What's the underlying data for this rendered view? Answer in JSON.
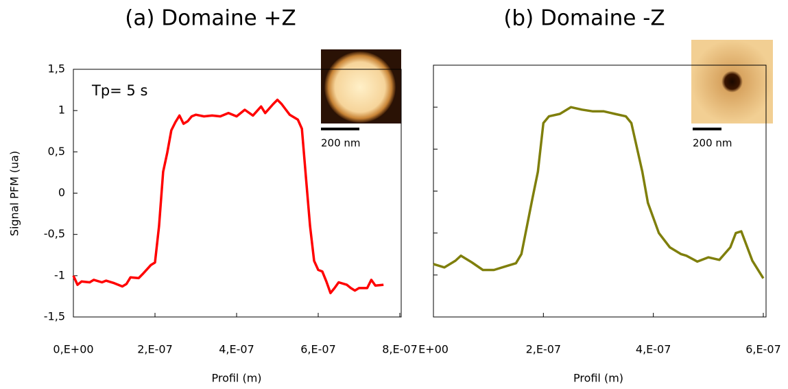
{
  "chart_data": [
    {
      "type": "line",
      "title": "(a) Domaine +Z",
      "x_label": "Profil (m)",
      "y_label": "Signal PFM (ua)",
      "annotation": "Tp= 5 s",
      "inset_scale": "200 nm",
      "color": "#ff0000",
      "xlim": [
        0,
        8e-07
      ],
      "ylim": [
        -1.5,
        1.5
      ],
      "xticks": [
        {
          "value": 0,
          "label": "0,E+00"
        },
        {
          "value": 2e-07,
          "label": "2,E-07"
        },
        {
          "value": 4e-07,
          "label": "4,E-07"
        },
        {
          "value": 6e-07,
          "label": "6,E-07"
        },
        {
          "value": 8e-07,
          "label": "8,E-07"
        }
      ],
      "yticks": [
        {
          "value": 1.5,
          "label": "1,5"
        },
        1,
        {
          "value": 0.5,
          "label": "0,5"
        },
        0,
        {
          "value": -0.5,
          "label": "-0,5"
        },
        -1,
        {
          "value": -1.5,
          "label": "-1,5"
        }
      ],
      "show_ytick_labels": true,
      "x": [
        0,
        1e-08,
        2e-08,
        4e-08,
        5e-08,
        7e-08,
        8e-08,
        1e-07,
        1.2e-07,
        1.3e-07,
        1.4e-07,
        1.6e-07,
        1.7e-07,
        1.9e-07,
        2e-07,
        2.1e-07,
        2.2e-07,
        2.3e-07,
        2.4e-07,
        2.5e-07,
        2.6e-07,
        2.7e-07,
        2.8e-07,
        2.9e-07,
        3e-07,
        3.2e-07,
        3.4e-07,
        3.6e-07,
        3.8e-07,
        4e-07,
        4.2e-07,
        4.4e-07,
        4.6e-07,
        4.7e-07,
        4.9e-07,
        5e-07,
        5.1e-07,
        5.3e-07,
        5.5e-07,
        5.6e-07,
        5.7e-07,
        5.8e-07,
        5.9e-07,
        6e-07,
        6.1e-07,
        6.2e-07,
        6.3e-07,
        6.4e-07,
        6.5e-07,
        6.7e-07,
        6.8e-07,
        6.9e-07,
        7e-07,
        7.2e-07,
        7.3e-07,
        7.4e-07,
        7.6e-07
      ],
      "values": [
        -1.0,
        -1.11,
        -1.07,
        -1.08,
        -1.05,
        -1.08,
        -1.06,
        -1.09,
        -1.13,
        -1.1,
        -1.02,
        -1.03,
        -0.98,
        -0.87,
        -0.84,
        -0.4,
        0.26,
        0.49,
        0.76,
        0.86,
        0.94,
        0.84,
        0.87,
        0.93,
        0.95,
        0.93,
        0.94,
        0.93,
        0.97,
        0.93,
        1.01,
        0.94,
        1.05,
        0.97,
        1.08,
        1.13,
        1.08,
        0.95,
        0.89,
        0.78,
        0.18,
        -0.4,
        -0.82,
        -0.93,
        -0.95,
        -1.07,
        -1.21,
        -1.15,
        -1.08,
        -1.11,
        -1.15,
        -1.18,
        -1.15,
        -1.15,
        -1.05,
        -1.12,
        -1.11
      ]
    },
    {
      "type": "line",
      "title": "(b) Domaine -Z",
      "x_label": "Profil (m)",
      "inset_scale": "200 nm",
      "color": "#7f7f0c",
      "xlim": [
        0,
        6e-07
      ],
      "ylim": [
        -1.5,
        1.5
      ],
      "xticks": [
        {
          "value": 0,
          "label": "E+00"
        },
        {
          "value": 2e-07,
          "label": "2,E-07"
        },
        {
          "value": 4e-07,
          "label": "4,E-07"
        },
        {
          "value": 6e-07,
          "label": "6,E-07"
        }
      ],
      "yticks": [
        -1.5,
        -1,
        -0.5,
        0,
        0.5,
        1,
        1.5
      ],
      "show_ytick_labels": false,
      "x": [
        0,
        2e-08,
        4e-08,
        5e-08,
        7e-08,
        9e-08,
        1.1e-07,
        1.3e-07,
        1.5e-07,
        1.6e-07,
        1.8e-07,
        1.9e-07,
        2e-07,
        2.1e-07,
        2.3e-07,
        2.5e-07,
        2.7e-07,
        2.9e-07,
        3.1e-07,
        3.3e-07,
        3.5e-07,
        3.6e-07,
        3.8e-07,
        3.9e-07,
        4.1e-07,
        4.3e-07,
        4.5e-07,
        4.6e-07,
        4.8e-07,
        5e-07,
        5.2e-07,
        5.4e-07,
        5.5e-07,
        5.6e-07,
        5.8e-07,
        6e-07
      ],
      "values": [
        -0.87,
        -0.91,
        -0.83,
        -0.77,
        -0.85,
        -0.94,
        -0.94,
        -0.9,
        -0.86,
        -0.75,
        -0.09,
        0.23,
        0.81,
        0.89,
        0.92,
        1.0,
        0.97,
        0.95,
        0.95,
        0.92,
        0.89,
        0.81,
        0.23,
        -0.14,
        -0.5,
        -0.67,
        -0.75,
        -0.77,
        -0.84,
        -0.79,
        -0.82,
        -0.67,
        -0.5,
        -0.48,
        -0.83,
        -1.04
      ]
    }
  ]
}
